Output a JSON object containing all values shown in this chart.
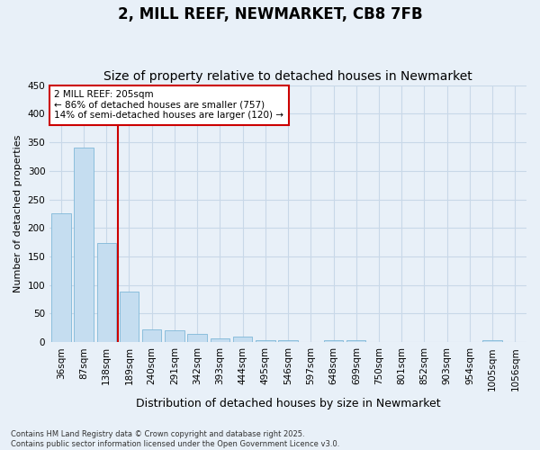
{
  "title": "2, MILL REEF, NEWMARKET, CB8 7FB",
  "subtitle": "Size of property relative to detached houses in Newmarket",
  "xlabel": "Distribution of detached houses by size in Newmarket",
  "ylabel": "Number of detached properties",
  "categories": [
    "36sqm",
    "87sqm",
    "138sqm",
    "189sqm",
    "240sqm",
    "291sqm",
    "342sqm",
    "393sqm",
    "444sqm",
    "495sqm",
    "546sqm",
    "597sqm",
    "648sqm",
    "699sqm",
    "750sqm",
    "801sqm",
    "852sqm",
    "903sqm",
    "954sqm",
    "1005sqm",
    "1056sqm"
  ],
  "values": [
    225,
    340,
    173,
    89,
    22,
    20,
    15,
    7,
    9,
    4,
    3,
    0,
    4,
    3,
    0,
    0,
    0,
    0,
    0,
    3,
    0
  ],
  "bar_color": "#c5ddf0",
  "bar_edge_color": "#7fb8d8",
  "grid_color": "#c8d8e8",
  "background_color": "#e8f0f8",
  "red_line_x": 2.5,
  "red_line_color": "#cc0000",
  "annotation_text": "2 MILL REEF: 205sqm\n← 86% of detached houses are smaller (757)\n14% of semi-detached houses are larger (120) →",
  "annotation_box_color": "#ffffff",
  "annotation_box_edge": "#cc0000",
  "ylim": [
    0,
    450
  ],
  "yticks": [
    0,
    50,
    100,
    150,
    200,
    250,
    300,
    350,
    400,
    450
  ],
  "footnote": "Contains HM Land Registry data © Crown copyright and database right 2025.\nContains public sector information licensed under the Open Government Licence v3.0.",
  "title_fontsize": 12,
  "subtitle_fontsize": 10,
  "xlabel_fontsize": 9,
  "ylabel_fontsize": 8,
  "tick_fontsize": 7.5,
  "annotation_fontsize": 7.5,
  "footnote_fontsize": 6
}
